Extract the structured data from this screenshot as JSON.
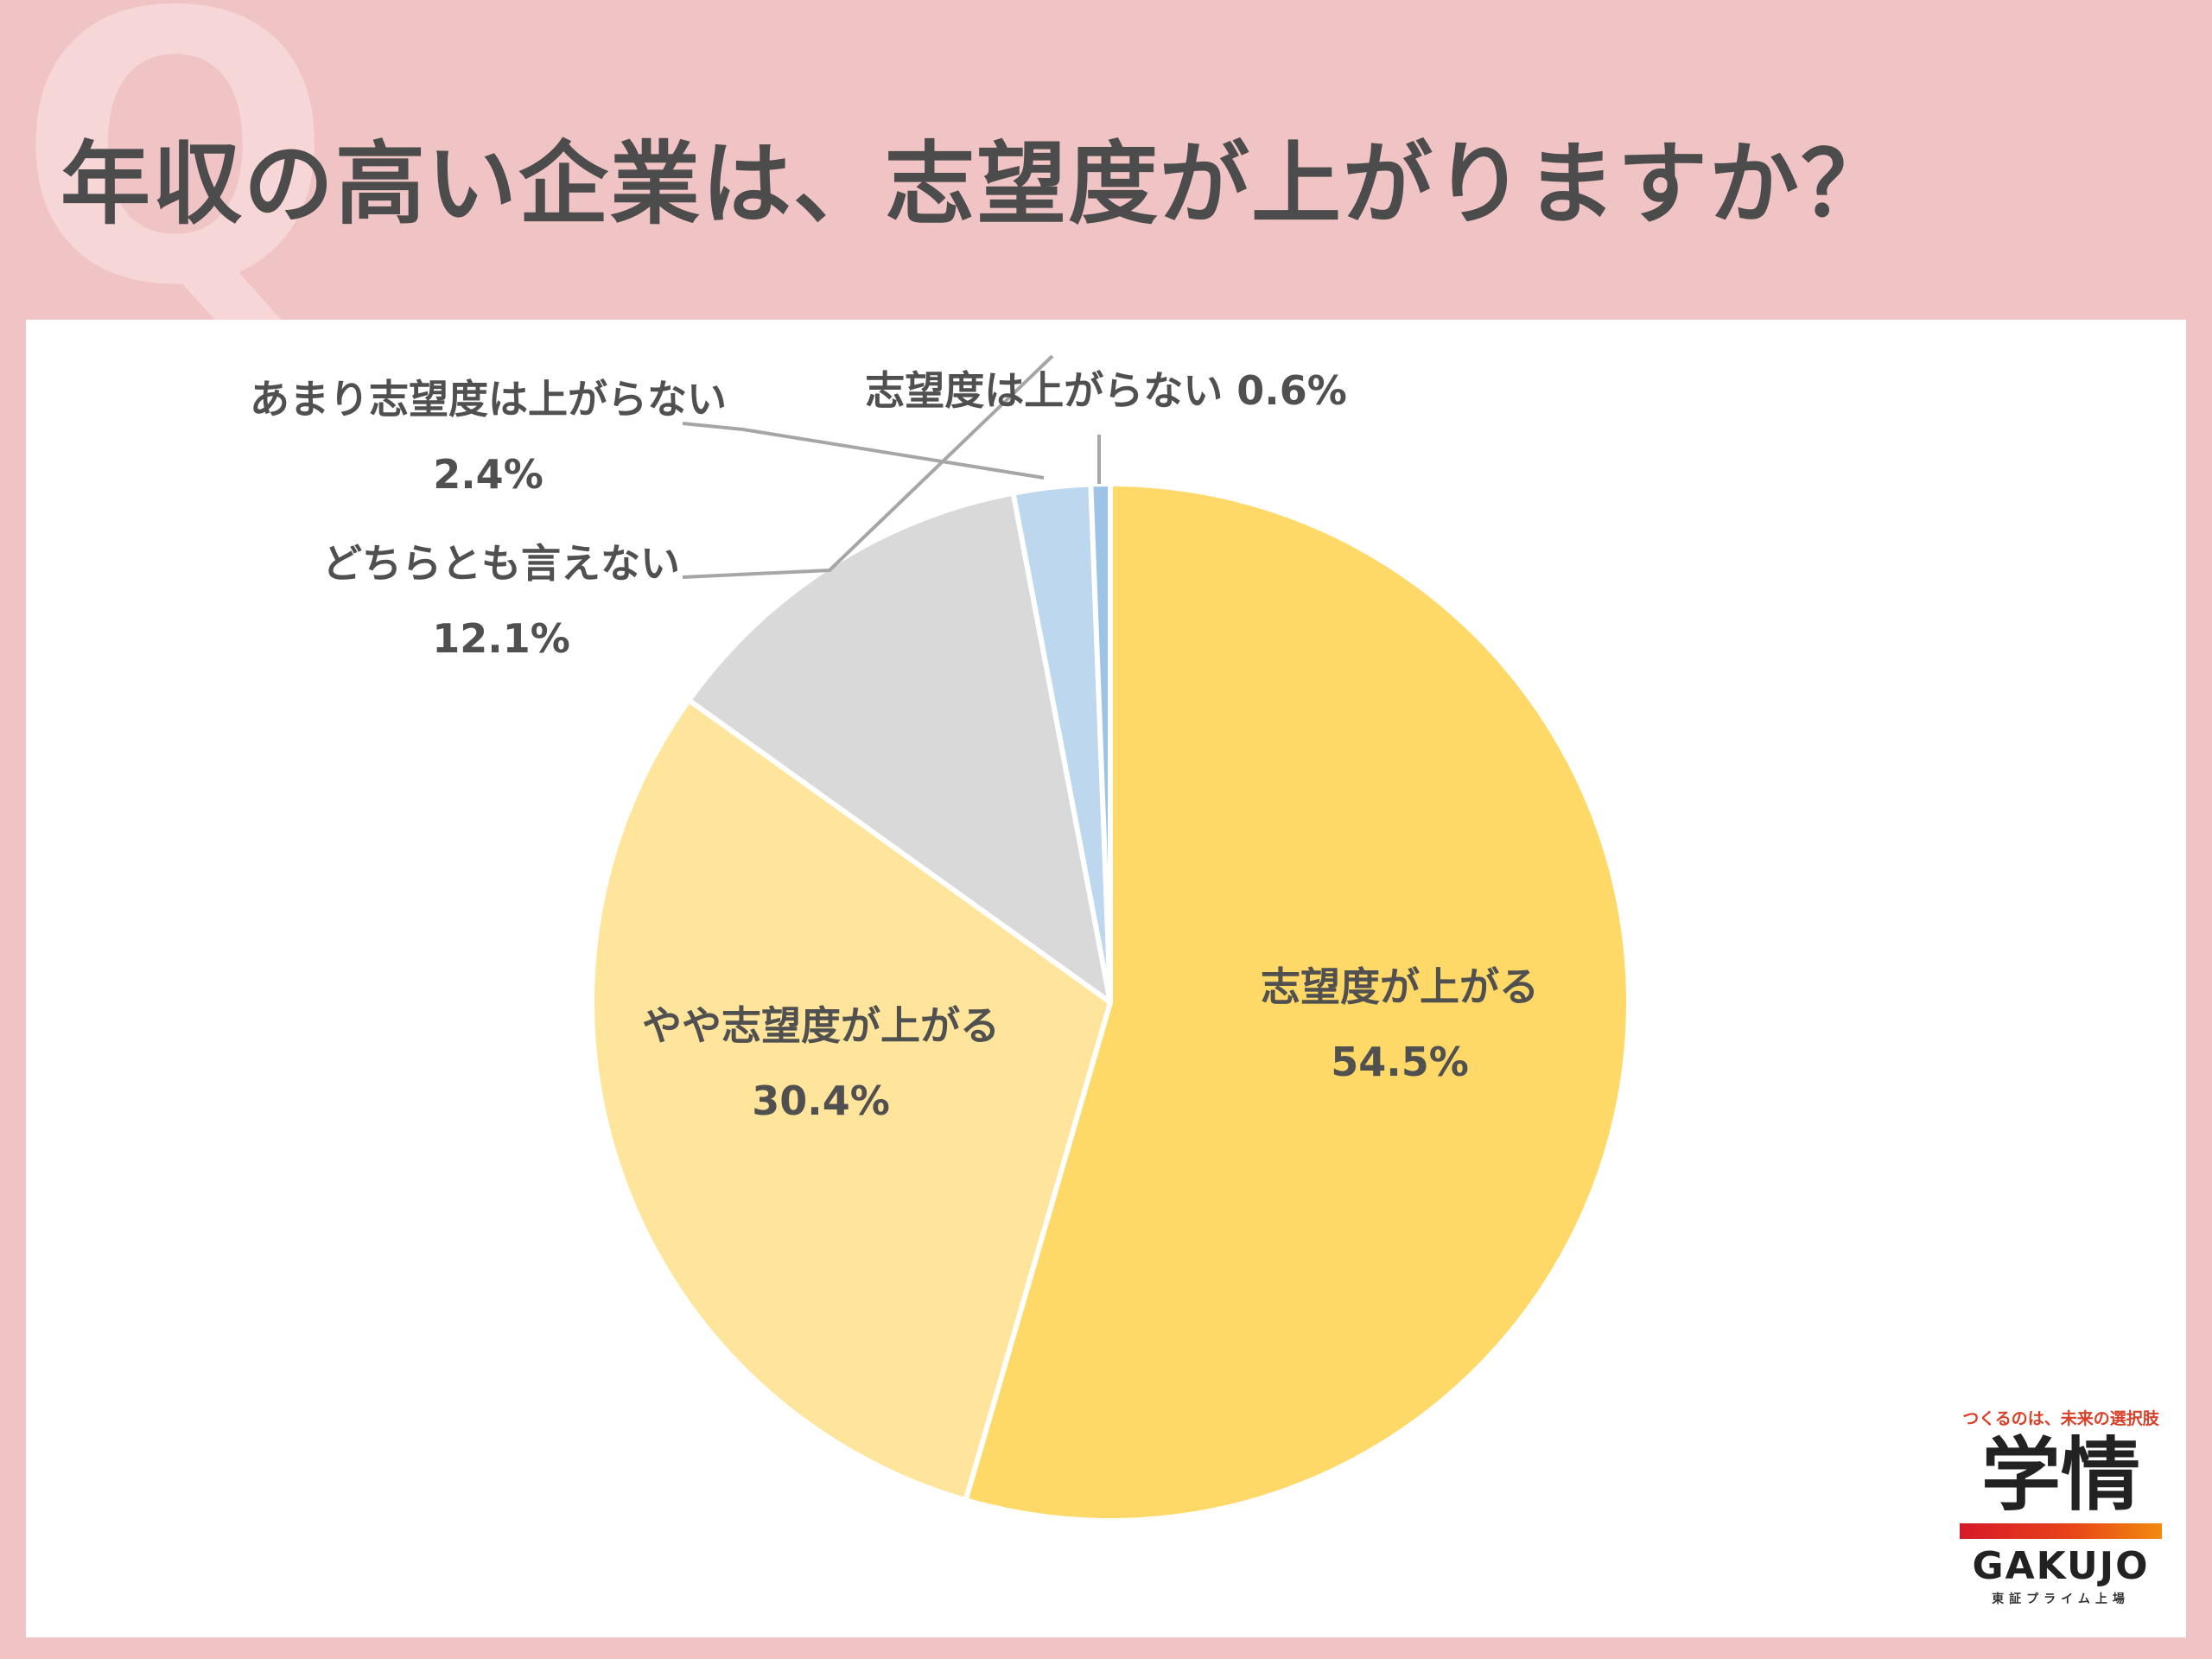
{
  "header": {
    "q_mark": "Q",
    "title": "年収の高い企業は、志望度が上がりますか？"
  },
  "chart_data": {
    "type": "pie",
    "title": "年収の高い企業は、志望度が上がりますか？",
    "slices": [
      {
        "label": "志望度が上がる",
        "value": 54.5,
        "value_text": "54.5%",
        "color": "#fed968"
      },
      {
        "label": "やや志望度が上がる",
        "value": 30.4,
        "value_text": "30.4%",
        "color": "#ffe59b"
      },
      {
        "label": "どちらとも言えない",
        "value": 12.1,
        "value_text": "12.1%",
        "color": "#d9d9d9"
      },
      {
        "label": "あまり志望度は上がらない",
        "value": 2.4,
        "value_text": "2.4%",
        "color": "#bdd7ee"
      },
      {
        "label": "志望度は上がらない",
        "value": 0.6,
        "value_text": "0.6%",
        "color": "#9dc3e6"
      }
    ],
    "legend": "none"
  },
  "labels": {
    "slice0_name": "志望度が上がる",
    "slice0_value": "54.5%",
    "slice1_name": "やや志望度が上がる",
    "slice1_value": "30.4%",
    "slice2_name": "どちらとも言えない",
    "slice2_value": "12.1%",
    "slice3_name": "あまり志望度は上がらない",
    "slice3_value": "2.4%",
    "slice4_text": "志望度は上がらない 0.6%"
  },
  "logo": {
    "tagline": "つくるのは、未来の選択肢",
    "kanji": "学情",
    "english": "GAKUJO",
    "sub": "東証プライム上場"
  }
}
